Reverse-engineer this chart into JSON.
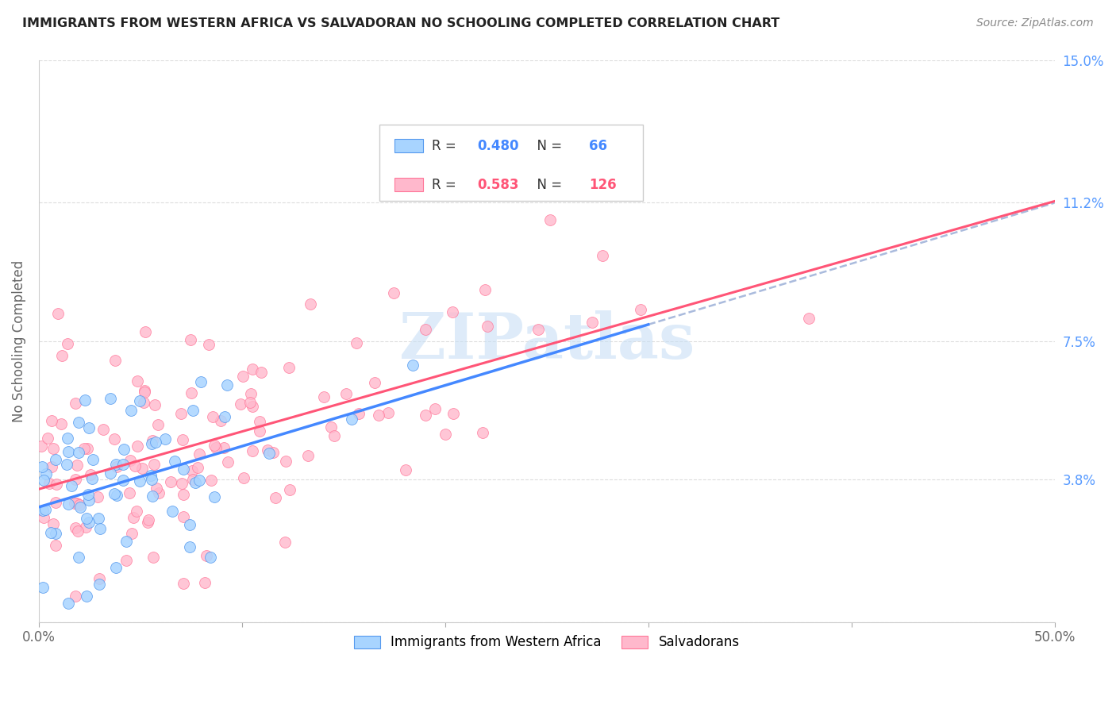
{
  "title": "IMMIGRANTS FROM WESTERN AFRICA VS SALVADORAN NO SCHOOLING COMPLETED CORRELATION CHART",
  "source": "Source: ZipAtlas.com",
  "ylabel": "No Schooling Completed",
  "xlim": [
    0.0,
    0.5
  ],
  "ylim": [
    0.0,
    0.15
  ],
  "xtick_positions": [
    0.0,
    0.1,
    0.2,
    0.3,
    0.4,
    0.5
  ],
  "xticklabels": [
    "0.0%",
    "",
    "",
    "",
    "",
    "50.0%"
  ],
  "ytick_positions": [
    0.0,
    0.038,
    0.075,
    0.112,
    0.15
  ],
  "right_yticklabels": [
    "",
    "3.8%",
    "7.5%",
    "11.2%",
    "15.0%"
  ],
  "R_blue": 0.48,
  "N_blue": 66,
  "R_pink": 0.583,
  "N_pink": 126,
  "legend_labels": [
    "Immigrants from Western Africa",
    "Salvadorans"
  ],
  "blue_fill": "#a8d4ff",
  "blue_edge": "#5599ee",
  "pink_fill": "#ffb8cc",
  "pink_edge": "#ff7799",
  "blue_line": "#4488ff",
  "pink_line": "#ff5577",
  "dash_line": "#aabbdd",
  "watermark_color": "#c8dff5",
  "background_color": "#ffffff",
  "grid_color": "#dddddd",
  "title_color": "#222222",
  "right_label_color": "#5599ff",
  "legend_box_color": "#cccccc",
  "seed": 7,
  "blue_intercept": 0.028,
  "blue_slope": 0.075,
  "pink_intercept": 0.032,
  "pink_slope": 0.18
}
